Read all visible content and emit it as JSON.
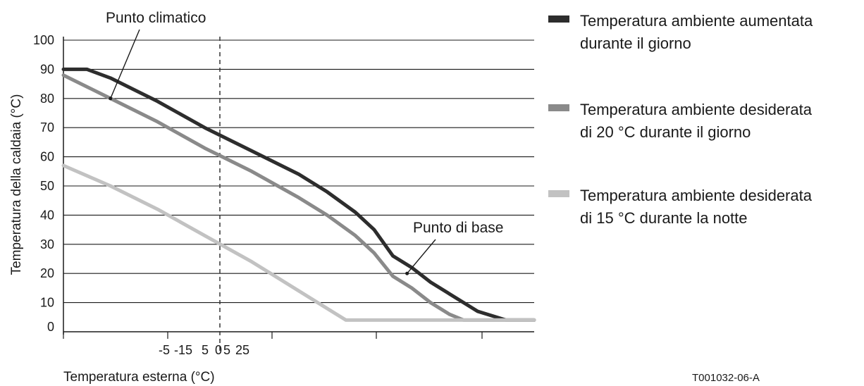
{
  "chart_data": {
    "type": "line",
    "title": "",
    "xlabel": "Temperatura esterna (°C)",
    "ylabel": "Temperatura della caldaia (°C)",
    "x_tick_labels": [
      "-5",
      "-15",
      "5",
      "0",
      "5",
      "25"
    ],
    "y_ticks": [
      0,
      10,
      20,
      30,
      40,
      50,
      60,
      70,
      80,
      90,
      100
    ],
    "ylim": [
      0,
      100
    ],
    "xlim": [
      0,
      100
    ],
    "grid": "horizontal",
    "legend_position": "right",
    "series": [
      {
        "name": "Temperatura ambiente aumentata durante il giorno",
        "color": "#2d2d2d",
        "x": [
          0,
          5,
          10,
          20,
          30,
          40,
          50,
          56,
          62,
          66,
          70,
          74,
          78,
          82,
          88,
          94,
          97,
          100
        ],
        "y": [
          90,
          90,
          87,
          79,
          70,
          62,
          54,
          48,
          41,
          35,
          26,
          22,
          17,
          13,
          7,
          4,
          4,
          4
        ]
      },
      {
        "name": "Temperatura ambiente desiderata di 20 °C durante il giorno",
        "color": "#8a8a8a",
        "x": [
          0,
          5,
          10,
          20,
          30,
          40,
          50,
          56,
          62,
          66,
          70,
          74,
          78,
          82,
          85,
          88,
          91,
          100
        ],
        "y": [
          88,
          84,
          80,
          72,
          63,
          55,
          46,
          40,
          33,
          27,
          19,
          15,
          10,
          6,
          4,
          4,
          4,
          4
        ]
      },
      {
        "name": "Temperatura ambiente desiderata di 15 °C durante la notte",
        "color": "#c2c2c2",
        "x": [
          0,
          10,
          20,
          30,
          40,
          50,
          56,
          60,
          62,
          70,
          80,
          90,
          100
        ],
        "y": [
          57,
          50,
          42,
          33,
          24,
          14,
          8,
          4,
          4,
          4,
          4,
          4,
          4
        ]
      }
    ],
    "annotations": [
      {
        "text": "Punto climatico",
        "x": 10,
        "y": 80
      },
      {
        "text": "Punto di base",
        "x": 73,
        "y": 20
      }
    ],
    "figure_code": "T001032-06-A"
  }
}
